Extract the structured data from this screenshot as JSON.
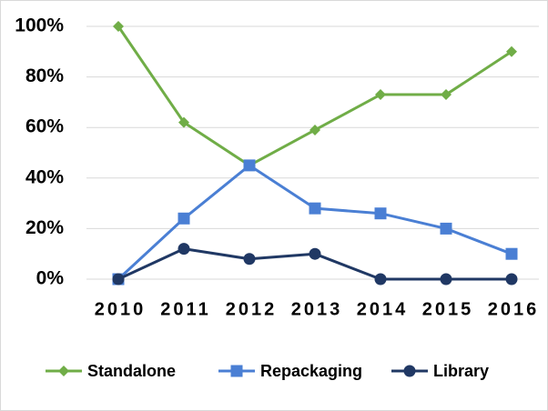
{
  "chart_data": {
    "type": "line",
    "categories": [
      "2010",
      "2011",
      "2012",
      "2013",
      "2014",
      "2015",
      "2016"
    ],
    "series": [
      {
        "name": "Standalone",
        "color": "#70ad47",
        "marker": "diamond",
        "values": [
          100,
          62,
          45,
          59,
          73,
          73,
          90
        ]
      },
      {
        "name": "Repackaging",
        "color": "#4a7fd4",
        "marker": "square",
        "values": [
          0,
          24,
          45,
          28,
          26,
          20,
          10
        ]
      },
      {
        "name": "Library",
        "color": "#203864",
        "marker": "circle",
        "values": [
          0,
          12,
          8,
          10,
          0,
          0,
          0
        ]
      }
    ],
    "ylim": [
      0,
      100
    ],
    "yticks": [
      {
        "value": 0,
        "label": "0%"
      },
      {
        "value": 20,
        "label": "20%"
      },
      {
        "value": 40,
        "label": "40%"
      },
      {
        "value": 60,
        "label": "60%"
      },
      {
        "value": 80,
        "label": "80%"
      },
      {
        "value": 100,
        "label": "100%"
      }
    ],
    "grid": true,
    "legend": "bottom"
  }
}
